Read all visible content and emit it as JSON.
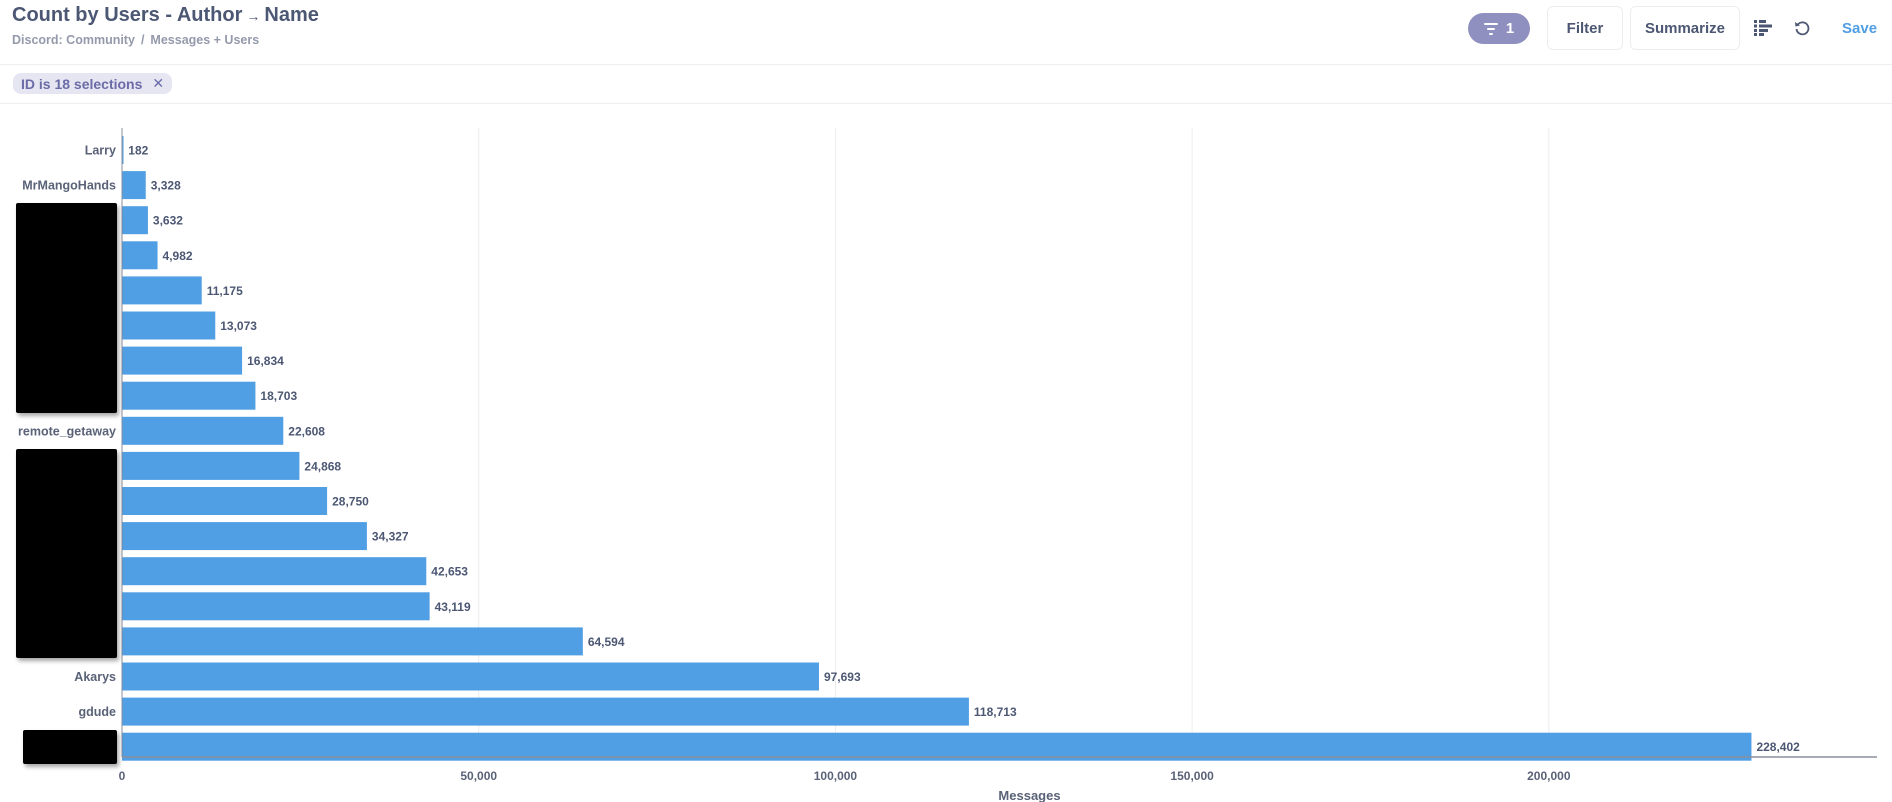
{
  "header": {
    "title_prefix": "Count by Users - Author",
    "title_arrow": "→",
    "title_suffix": "Name",
    "breadcrumb": [
      "Discord: Community",
      "Messages + Users"
    ],
    "breadcrumb_sep": "/"
  },
  "toolbar": {
    "filter_count": "1",
    "filter_label": "Filter",
    "summarize_label": "Summarize",
    "save_label": "Save",
    "icons": [
      "filter-icon",
      "chart-settings-icon",
      "refresh-icon"
    ]
  },
  "filters": [
    {
      "label": "ID is 18 selections",
      "remove": "✕"
    }
  ],
  "colors": {
    "bar": "#509ee3",
    "accent": "#509ee3",
    "filter_pill": "#8f8fc0"
  },
  "chart_data": {
    "type": "bar",
    "orientation": "horizontal",
    "categories": [
      "Larry",
      "MrMangoHands",
      "",
      "",
      "",
      "",
      "",
      "",
      "remote_getaway",
      "",
      "",
      "",
      "",
      "",
      "",
      "Akarys",
      "gdude",
      ""
    ],
    "redacted": [
      false,
      false,
      true,
      true,
      true,
      true,
      true,
      true,
      false,
      true,
      true,
      true,
      true,
      true,
      true,
      false,
      false,
      true
    ],
    "values": [
      182,
      3328,
      3632,
      4982,
      11175,
      13073,
      16834,
      18703,
      22608,
      24868,
      28750,
      34327,
      42653,
      43119,
      64594,
      97693,
      118713,
      228402
    ],
    "value_labels": [
      "182",
      "3,328",
      "3,632",
      "4,982",
      "11,175",
      "13,073",
      "16,834",
      "18,703",
      "22,608",
      "24,868",
      "28,750",
      "34,327",
      "42,653",
      "43,119",
      "64,594",
      "97,693",
      "118,713",
      "228,402"
    ],
    "xlabel": "Messages",
    "ylabel": "",
    "xlim": [
      0,
      246000
    ],
    "xticks": [
      0,
      50000,
      100000,
      150000,
      200000
    ],
    "xtick_labels": [
      "0",
      "50,000",
      "100,000",
      "150,000",
      "200,000"
    ],
    "grid": true
  }
}
